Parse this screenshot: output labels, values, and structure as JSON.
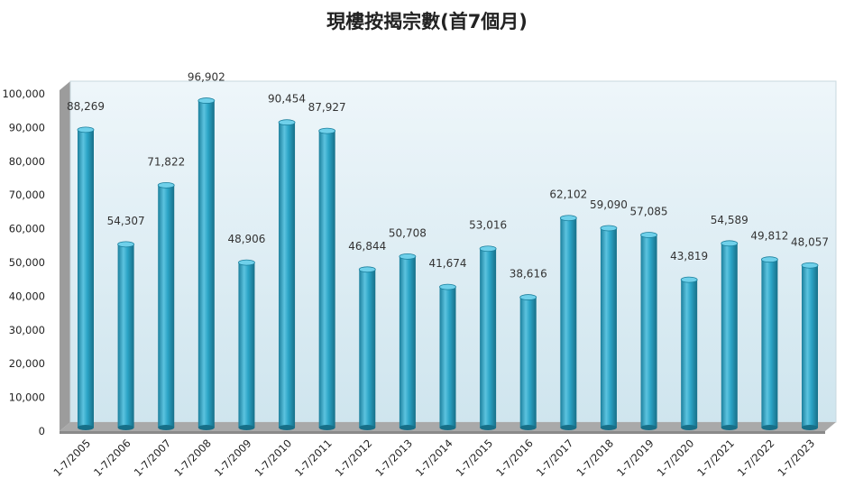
{
  "chart_data": {
    "type": "bar",
    "title": "現樓按揭宗數(首7個月)",
    "xlabel": "",
    "ylabel": "",
    "ylim": [
      0,
      100000
    ],
    "yticks": [
      "0",
      "10,000",
      "20,000",
      "30,000",
      "40,000",
      "50,000",
      "60,000",
      "70,000",
      "80,000",
      "90,000",
      "100,000"
    ],
    "categories": [
      "1-7/2005",
      "1-7/2006",
      "1-7/2007",
      "1-7/2008",
      "1-7/2009",
      "1-7/2010",
      "1-7/2011",
      "1-7/2012",
      "1-7/2013",
      "1-7/2014",
      "1-7/2015",
      "1-7/2016",
      "1-7/2017",
      "1-7/2018",
      "1-7/2019",
      "1-7/2020",
      "1-7/2021",
      "1-7/2022",
      "1-7/2023"
    ],
    "values": [
      88269,
      54307,
      71822,
      96902,
      48906,
      90454,
      87927,
      46844,
      50708,
      41674,
      53016,
      38616,
      62102,
      59090,
      57085,
      43819,
      54589,
      49812,
      48057
    ],
    "data_labels": [
      "88,269",
      "54,307",
      "71,822",
      "96,902",
      "48,906",
      "90,454",
      "87,927",
      "46,844",
      "50,708",
      "41,674",
      "53,016",
      "38,616",
      "62,102",
      "59,090",
      "57,085",
      "43,819",
      "54,589",
      "49,812",
      "48,057"
    ],
    "style": "3d-cylinder",
    "grid": false,
    "legend": "none",
    "colors": {
      "bar": "#2ba4c6",
      "wall": "#dcedf4",
      "floor": "#a9a9a9"
    }
  }
}
